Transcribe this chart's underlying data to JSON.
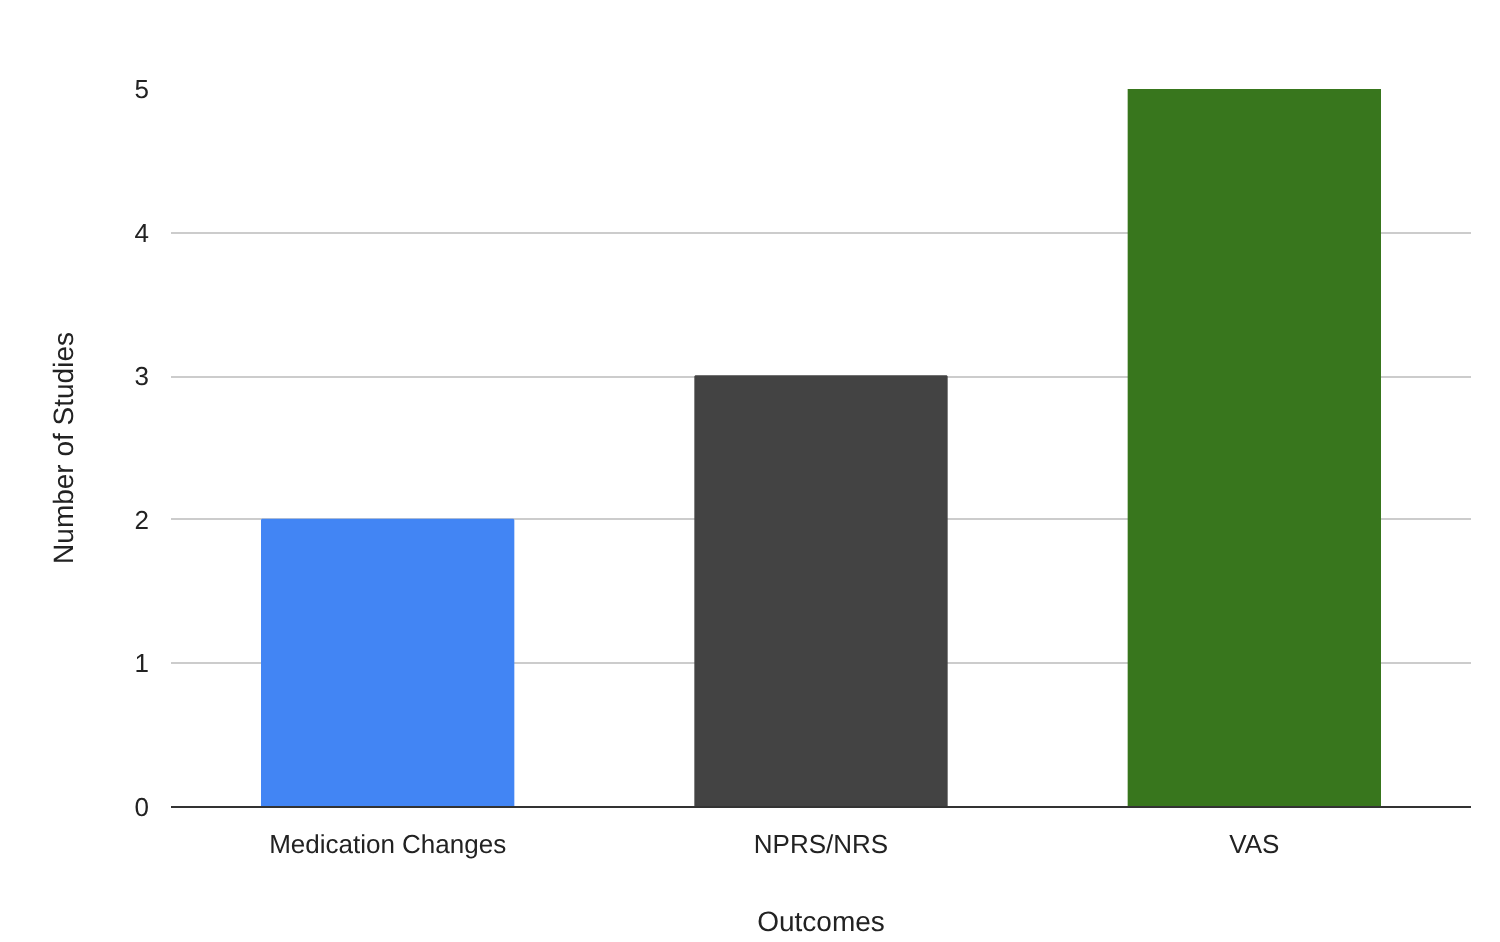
{
  "chart_data": {
    "type": "bar",
    "xlabel": "Outcomes",
    "ylabel": "Number of Studies",
    "categories": [
      "Medication Changes",
      "NPRS/NRS",
      "VAS"
    ],
    "values": [
      2,
      3,
      5
    ],
    "colors": [
      "#4285f4",
      "#434343",
      "#38761d"
    ],
    "ylim": [
      0,
      5
    ],
    "yticks": [
      0,
      1,
      2,
      3,
      4,
      5
    ],
    "grid": "y"
  }
}
